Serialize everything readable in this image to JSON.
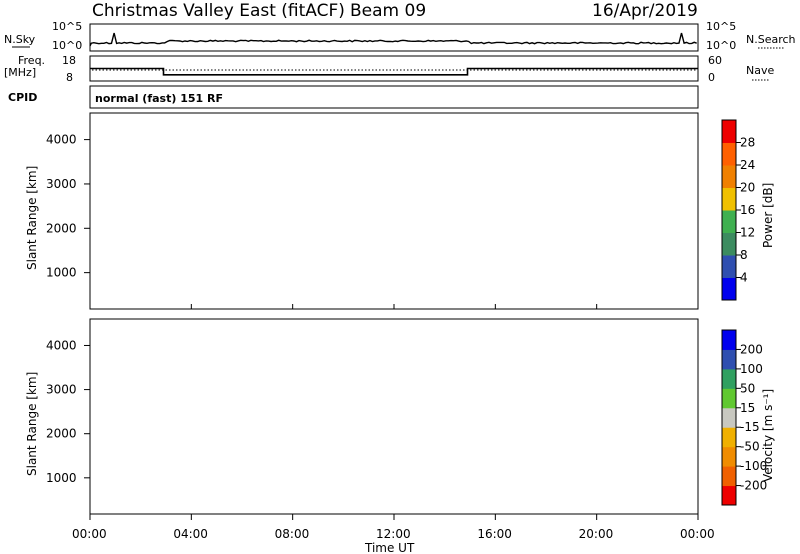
{
  "header": {
    "station": "Christmas Valley East (fitACF)",
    "beam": "Beam 09",
    "date": "16/Apr/2019"
  },
  "panel_labels": {
    "nsky": "N.Sky",
    "nsearch": "N.Search",
    "freq_line1": "Freq.",
    "freq_line2": "[MHz]",
    "nave": "Nave",
    "cpid": "CPID",
    "cpid_value": "normal (fast) 151 RF"
  },
  "noise_axis": {
    "left_top": "10^5",
    "left_bottom": "10^0",
    "right_top": "10^5",
    "right_bottom": "10^0"
  },
  "freq_axis": {
    "left_ticks": [
      "18",
      "8"
    ],
    "right_ticks": [
      "60",
      "0"
    ]
  },
  "colors": {
    "power": [
      "#0000ee",
      "#2f4fb0",
      "#3c8c60",
      "#3fb050",
      "#f0c000",
      "#f08000",
      "#ff6000",
      "#ee0000"
    ],
    "velocity": [
      "#ee0000",
      "#f06000",
      "#f08c00",
      "#f0b000",
      "#c8c8c0",
      "#60c830",
      "#30a060",
      "#2f4fb0",
      "#0000ee"
    ]
  },
  "chart_data": [
    {
      "type": "heatmap",
      "name": "power",
      "ylabel": "Slant Range [km]",
      "xlabel": "",
      "ylim": [
        180,
        4600
      ],
      "xlim_hours": [
        0,
        24
      ],
      "yticks": [
        "1000",
        "2000",
        "3000",
        "4000"
      ],
      "colorbar_label": "Power [dB]",
      "colorbar_ticks": [
        "4",
        "8",
        "12",
        "16",
        "20",
        "24",
        "28"
      ],
      "clim": [
        0,
        32
      ]
    },
    {
      "type": "heatmap",
      "name": "velocity",
      "ylabel": "Slant Range [km]",
      "xlabel": "Time UT",
      "ylim": [
        180,
        4600
      ],
      "xlim_hours": [
        0,
        24
      ],
      "yticks": [
        "1000",
        "2000",
        "3000",
        "4000"
      ],
      "xticks": [
        "00:00",
        "04:00",
        "08:00",
        "12:00",
        "16:00",
        "20:00",
        "00:00"
      ],
      "colorbar_label": "Velocity [m s⁻¹]",
      "colorbar_ticks": [
        "200",
        "100",
        "50",
        "15",
        "-15",
        "-50",
        "-100",
        "-200"
      ]
    }
  ],
  "frequency_series": {
    "hours": [
      0,
      2.9,
      2.9,
      14.9,
      14.9,
      24
    ],
    "mhz": [
      13,
      13,
      10.5,
      10.5,
      13,
      13
    ]
  }
}
